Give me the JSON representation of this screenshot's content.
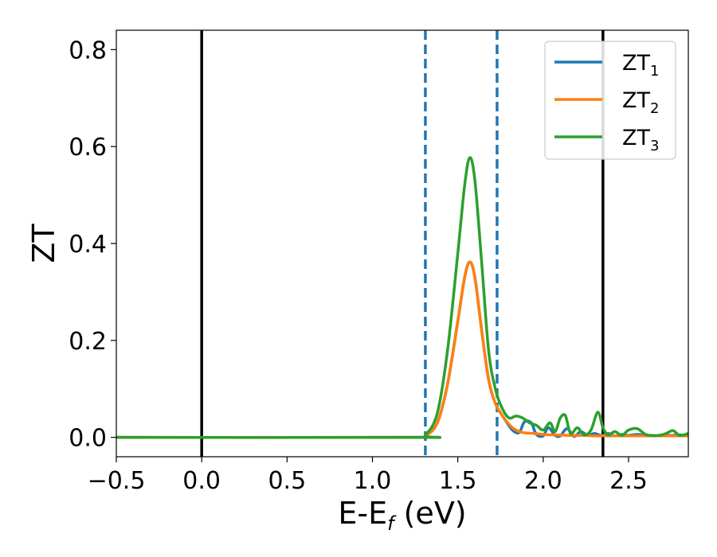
{
  "chart_data": {
    "type": "line",
    "title": "",
    "xlabel": "E-E",
    "xlabel_sub": "f",
    "xlabel_unit": " (eV)",
    "ylabel": "ZT",
    "xlim": [
      -0.5,
      2.85
    ],
    "ylim": [
      -0.04,
      0.84
    ],
    "xticks": [
      -0.5,
      0.0,
      0.5,
      1.0,
      1.5,
      2.0,
      2.5
    ],
    "xtick_labels": [
      "−0.5",
      "0.0",
      "0.5",
      "1.0",
      "1.5",
      "2.0",
      "2.5"
    ],
    "yticks": [
      0.0,
      0.2,
      0.4,
      0.6,
      0.8
    ],
    "ytick_labels": [
      "0.0",
      "0.2",
      "0.4",
      "0.6",
      "0.8"
    ],
    "grid": false,
    "legend_position": "top-right",
    "vertical_lines": [
      {
        "x": 0.0,
        "style": "solid",
        "color": "#000000"
      },
      {
        "x": 2.35,
        "style": "solid",
        "color": "#000000"
      },
      {
        "x": 1.31,
        "style": "dashed",
        "color": "#1f77b4"
      },
      {
        "x": 1.73,
        "style": "dashed",
        "color": "#1f77b4"
      }
    ],
    "series": [
      {
        "name": "ZT",
        "name_sub": "1",
        "color": "#1f77b4",
        "x": [
          -0.5,
          1.25,
          1.31,
          1.38,
          1.44,
          1.5,
          1.54,
          1.57,
          1.6,
          1.64,
          1.68,
          1.72,
          1.77,
          1.82,
          1.86,
          1.89,
          1.93,
          1.96,
          2.0,
          2.03,
          2.07,
          2.1,
          2.14,
          2.18,
          2.22,
          2.26,
          2.3,
          2.34,
          2.38,
          2.42,
          2.46,
          2.5,
          2.55,
          2.6,
          2.65,
          2.7,
          2.75,
          2.8,
          2.85
        ],
        "y": [
          0.0,
          0.0,
          0.003,
          0.03,
          0.11,
          0.24,
          0.33,
          0.362,
          0.33,
          0.22,
          0.12,
          0.07,
          0.04,
          0.015,
          0.01,
          0.032,
          0.03,
          0.006,
          0.003,
          0.02,
          0.004,
          0.003,
          0.018,
          0.002,
          0.012,
          0.004,
          0.008,
          0.004,
          0.008,
          0.003,
          0.006,
          0.004,
          0.006,
          0.004,
          0.003,
          0.005,
          0.004,
          0.005,
          0.004
        ]
      },
      {
        "name": "ZT",
        "name_sub": "2",
        "color": "#ff7f0e",
        "x": [
          -0.5,
          1.25,
          1.31,
          1.38,
          1.44,
          1.5,
          1.54,
          1.57,
          1.6,
          1.64,
          1.68,
          1.72,
          1.77,
          1.82,
          1.86,
          1.9,
          1.95,
          2.0,
          2.05,
          2.1,
          2.15,
          2.2,
          2.25,
          2.3,
          2.35,
          2.4,
          2.45,
          2.5,
          2.55,
          2.6,
          2.65,
          2.7,
          2.75,
          2.8,
          2.85
        ],
        "y": [
          0.0,
          0.0,
          0.003,
          0.03,
          0.11,
          0.24,
          0.33,
          0.362,
          0.33,
          0.22,
          0.12,
          0.07,
          0.04,
          0.02,
          0.012,
          0.009,
          0.008,
          0.006,
          0.005,
          0.005,
          0.004,
          0.004,
          0.004,
          0.003,
          0.003,
          0.003,
          0.003,
          0.003,
          0.003,
          0.003,
          0.003,
          0.003,
          0.003,
          0.003,
          0.003
        ]
      },
      {
        "name": "ZT",
        "name_sub": "3",
        "color": "#2ca02c",
        "x": [
          -0.5,
          1.25,
          1.31,
          1.38,
          1.44,
          1.5,
          1.54,
          1.57,
          1.6,
          1.64,
          1.68,
          1.72,
          1.76,
          1.8,
          1.84,
          1.88,
          1.92,
          1.96,
          2.0,
          2.04,
          2.07,
          2.1,
          2.13,
          2.16,
          2.2,
          2.24,
          2.28,
          2.32,
          2.35,
          2.38,
          2.42,
          2.46,
          2.5,
          2.55,
          2.6,
          2.64,
          2.68,
          2.72,
          2.76,
          2.8,
          2.85
        ],
        "y": [
          0.0,
          0.0,
          0.005,
          0.05,
          0.18,
          0.38,
          0.52,
          0.577,
          0.53,
          0.36,
          0.18,
          0.1,
          0.06,
          0.04,
          0.044,
          0.04,
          0.03,
          0.025,
          0.015,
          0.03,
          0.012,
          0.04,
          0.045,
          0.008,
          0.02,
          0.005,
          0.015,
          0.052,
          0.02,
          0.005,
          0.012,
          0.004,
          0.015,
          0.018,
          0.006,
          0.004,
          0.004,
          0.008,
          0.014,
          0.004,
          0.008
        ]
      }
    ]
  }
}
